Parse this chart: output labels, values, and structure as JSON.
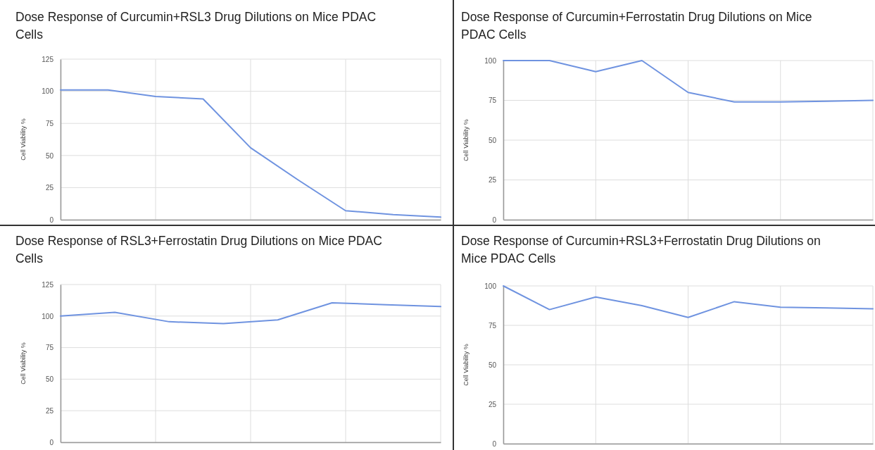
{
  "chart_data": [
    {
      "type": "line",
      "title": "Dose Response of Curcumin+RSL3 Drug Dilutions on Mice PDAC Cells",
      "ylabel": "Cell Viability %",
      "categories": [
        null,
        null,
        null,
        null,
        null,
        null,
        null,
        null,
        null
      ],
      "ylim": [
        0,
        125
      ],
      "yticks": [
        0,
        25,
        50,
        75,
        100,
        125
      ],
      "tick_labels": "y",
      "grid": true,
      "series": [
        {
          "color": "#6f93e0",
          "values": [
            101,
            101,
            96,
            94,
            56,
            31,
            7,
            4,
            2
          ]
        }
      ]
    },
    {
      "type": "line",
      "title": "Dose Response of Curcumin+Ferrostatin Drug Dilutions on Mice PDAC Cells",
      "ylabel": "Cell Viability %",
      "categories": [
        null,
        null,
        null,
        null,
        null,
        null,
        null,
        null,
        null
      ],
      "ylim": [
        0,
        100
      ],
      "yticks": [
        0,
        25,
        50,
        75,
        100
      ],
      "tick_labels": "y",
      "grid": true,
      "series": [
        {
          "color": "#6f93e0",
          "values": [
            100,
            100,
            93,
            100,
            80,
            74,
            74,
            74.5,
            75
          ]
        }
      ]
    },
    {
      "type": "line",
      "title": "Dose Response of RSL3+Ferrostatin Drug Dilutions on Mice PDAC Cells",
      "ylabel": "Cell Viability %",
      "categories": [
        null,
        null,
        null,
        null,
        null,
        null,
        null,
        null
      ],
      "ylim": [
        0,
        125
      ],
      "yticks": [
        0,
        25,
        50,
        75,
        100,
        125
      ],
      "tick_labels": "y",
      "grid": true,
      "series": [
        {
          "color": "#6f93e0",
          "values": [
            100,
            103,
            95.5,
            94,
            97,
            110.5,
            109,
            107.5
          ]
        }
      ]
    },
    {
      "type": "line",
      "title": "Dose Response of Curcumin+RSL3+Ferrostatin Drug Dilutions on Mice PDAC Cells",
      "ylabel": "Cell Viability %",
      "categories": [
        null,
        null,
        null,
        null,
        null,
        null,
        null,
        null,
        null
      ],
      "ylim": [
        0,
        100
      ],
      "yticks": [
        0,
        25,
        50,
        75,
        100
      ],
      "tick_labels": "y",
      "grid": true,
      "series": [
        {
          "color": "#6f93e0",
          "values": [
            100,
            85,
            93,
            87.5,
            80,
            90,
            86.5,
            86,
            85.5
          ]
        }
      ]
    }
  ]
}
